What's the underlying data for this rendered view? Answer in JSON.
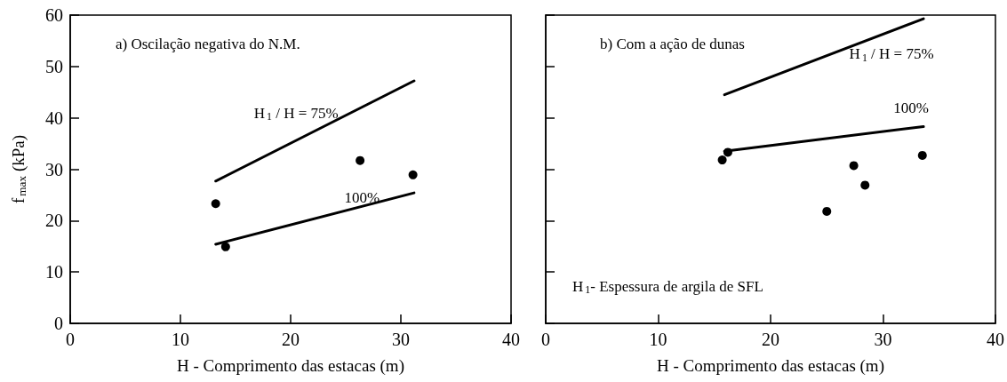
{
  "chart_data": [
    {
      "type": "scatter",
      "title": "a) Oscilação negativa do N.M.",
      "xlabel": "H - Comprimento das estacas (m)",
      "ylabel": "f$_{max}$ (kPa)",
      "xlim": [
        0,
        40
      ],
      "xticks": [
        0,
        10,
        20,
        30,
        40
      ],
      "ylim": [
        0,
        60
      ],
      "yticks": [
        0,
        10,
        20,
        30,
        40,
        50,
        60
      ],
      "grid": false,
      "series": [
        {
          "type": "line",
          "name": "H$_{1}$ / H = 75%",
          "color": "#000000",
          "marker": "none",
          "x": [
            13.2,
            31.2
          ],
          "values": [
            27.7,
            47.2
          ]
        },
        {
          "type": "line",
          "name": "100%",
          "color": "#000000",
          "marker": "none",
          "x": [
            13.2,
            31.2
          ],
          "values": [
            15.4,
            25.4
          ]
        },
        {
          "color": "#000000",
          "marker": "circle",
          "x": [
            13.2,
            14.1,
            26.3,
            31.1
          ],
          "values": [
            23.3,
            14.9,
            31.7,
            28.9
          ]
        }
      ]
    },
    {
      "type": "scatter",
      "title": "b) Com a ação de dunas",
      "xlabel": "H - Comprimento das estacas (m)",
      "xlim": [
        0,
        40
      ],
      "xticks": [
        0,
        10,
        20,
        30,
        40
      ],
      "ylim": [
        0,
        60
      ],
      "yticks": [
        0,
        10,
        20,
        30,
        40,
        50,
        60
      ],
      "tick_labels": "x",
      "grid": false,
      "series": [
        {
          "type": "line",
          "name": "H$_{1}$ / H = 75%",
          "color": "#000000",
          "marker": "none",
          "x": [
            15.9,
            33.6
          ],
          "values": [
            44.5,
            59.3
          ]
        },
        {
          "type": "line",
          "name": "100%",
          "color": "#000000",
          "marker": "none",
          "x": [
            15.9,
            33.6
          ],
          "values": [
            33.5,
            38.3
          ]
        },
        {
          "color": "#000000",
          "marker": "circle",
          "x": [
            15.7,
            16.2,
            25.0,
            27.4,
            28.4,
            33.5
          ],
          "values": [
            31.8,
            33.3,
            21.8,
            30.7,
            26.9,
            32.7
          ]
        }
      ],
      "annotations": [
        "H$_{1}$- Espessura de argila de SFL"
      ]
    }
  ]
}
